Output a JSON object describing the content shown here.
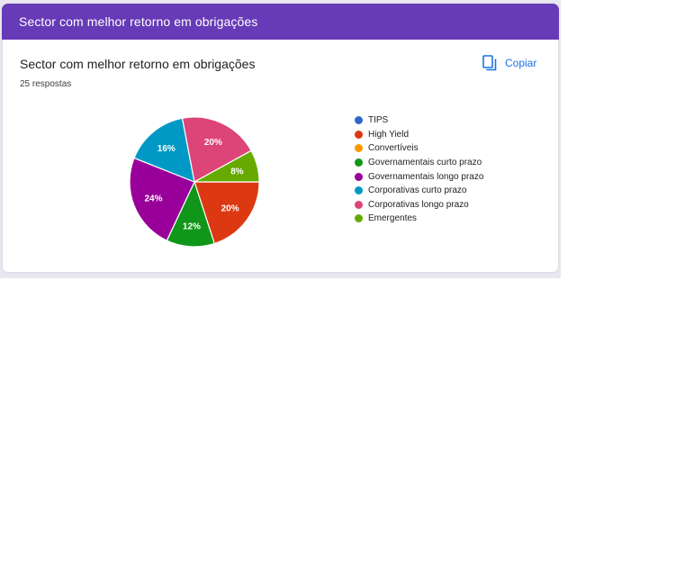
{
  "header": {
    "title": "Sector com melhor retorno em obrigações"
  },
  "question": {
    "title": "Sector com melhor retorno em obrigações",
    "responses": "25 respostas",
    "copy_label": "Copiar",
    "copy_icon": "copy-icon"
  },
  "colors": {
    "header_bg": "#673ab7",
    "link": "#1a73e8"
  },
  "chart_data": {
    "type": "pie",
    "categories": [
      "TIPS",
      "High Yield",
      "Convertíveis",
      "Governamentais curto prazo",
      "Governamentais longo prazo",
      "Corporativas curto prazo",
      "Corporativas longo prazo",
      "Emergentes"
    ],
    "values": [
      0,
      20,
      0,
      12,
      24,
      16,
      20,
      8
    ],
    "labels": [
      "",
      "20%",
      "",
      "12%",
      "24%",
      "16%",
      "20%",
      "8%"
    ],
    "colors": [
      "#3366cc",
      "#dc3912",
      "#ff9900",
      "#109618",
      "#990099",
      "#0099c6",
      "#dd4477",
      "#66aa00"
    ],
    "legend_position": "right"
  }
}
